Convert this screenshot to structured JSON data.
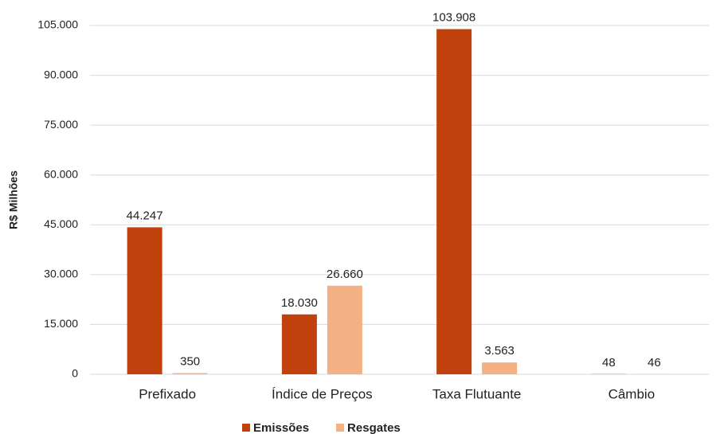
{
  "chart_data": {
    "type": "bar",
    "y_label": "R$ Milhões",
    "categories": [
      "Prefixado",
      "Índice de Preços",
      "Taxa Flutuante",
      "Câmbio"
    ],
    "series": [
      {
        "name": "Emissões",
        "color": "#c0410c",
        "values": [
          44247,
          18030,
          103908,
          48
        ],
        "value_labels": [
          "44.247",
          "18.030",
          "103.908",
          "48"
        ]
      },
      {
        "name": "Resgates",
        "color": "#f4b183",
        "values": [
          350,
          26660,
          3563,
          46
        ],
        "value_labels": [
          "350",
          "26.660",
          "3.563",
          "46"
        ]
      }
    ],
    "ylim": [
      0,
      105000
    ],
    "yticks": [
      0,
      {
        "value": 15000,
        "label": "15.000"
      },
      {
        "value": 30000,
        "label": "30.000"
      },
      {
        "value": 45000,
        "label": "45.000"
      },
      {
        "value": 60000,
        "label": "60.000"
      },
      {
        "value": 75000,
        "label": "75.000"
      },
      {
        "value": 90000,
        "label": "90.000"
      },
      {
        "value": 105000,
        "label": "105.000"
      }
    ],
    "grid": true,
    "legend": "bottom"
  }
}
